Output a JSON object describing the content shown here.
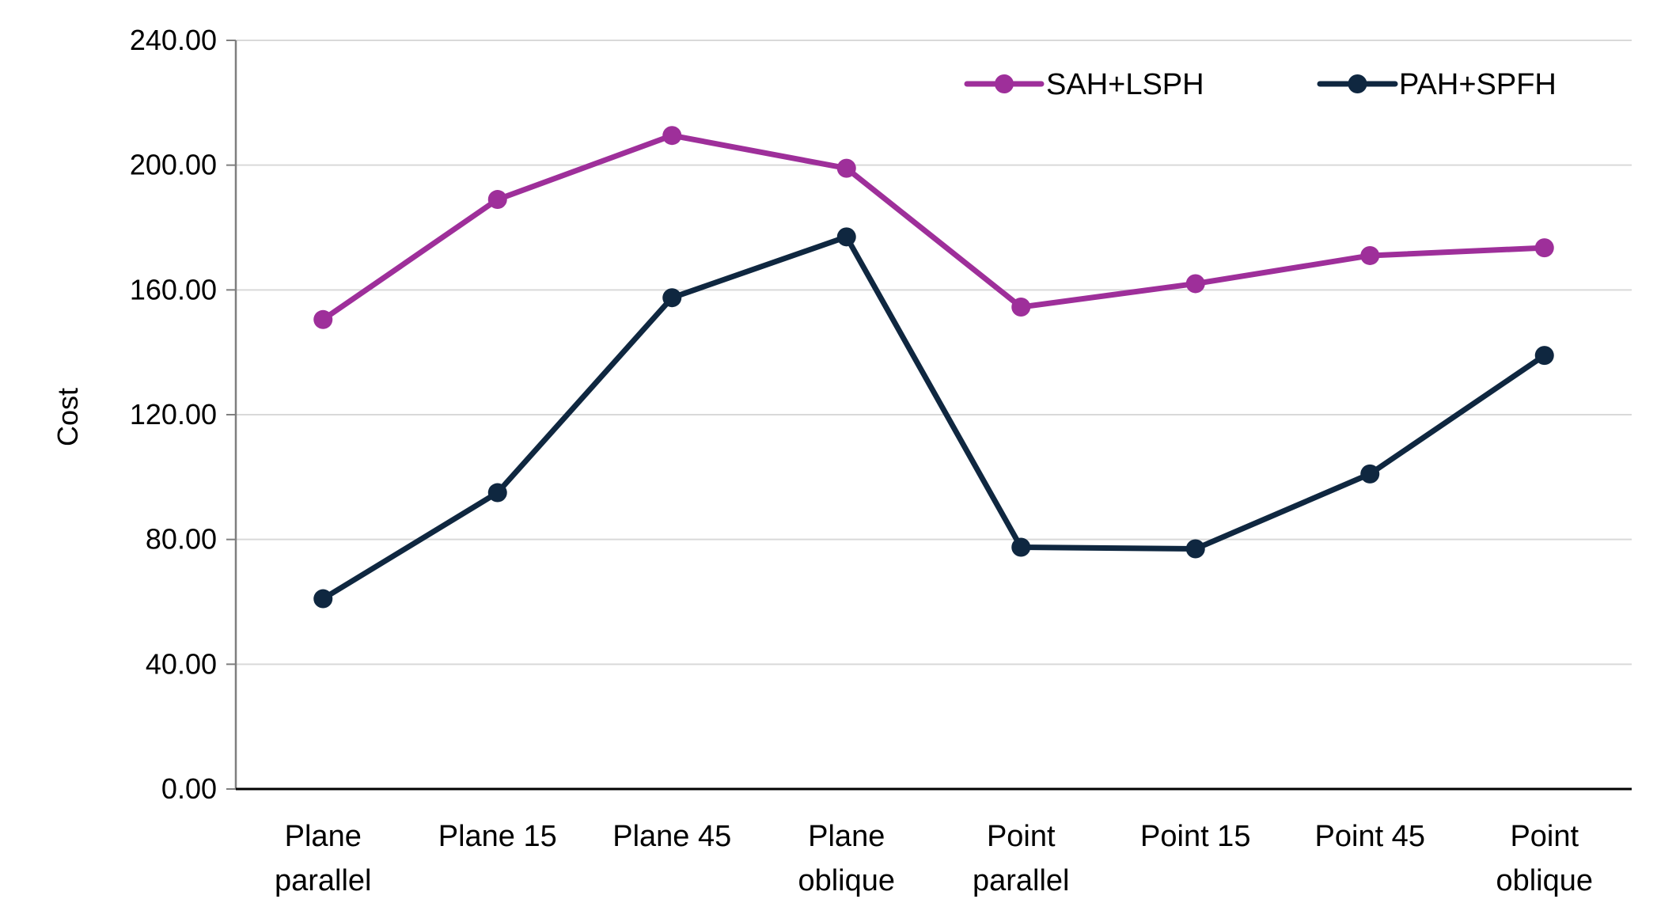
{
  "chart_data": {
    "type": "line",
    "title": "",
    "xlabel": "",
    "ylabel": "Cost",
    "ylim": [
      0,
      240
    ],
    "yticks": [
      "0.00",
      "40.00",
      "80.00",
      "120.00",
      "160.00",
      "200.00",
      "240.00"
    ],
    "categories": [
      [
        "Plane",
        "parallel"
      ],
      [
        "Plane 15"
      ],
      [
        "Plane 45"
      ],
      [
        "Plane",
        "oblique"
      ],
      [
        "Point",
        "parallel"
      ],
      [
        "Point 15"
      ],
      [
        "Point 45"
      ],
      [
        "Point",
        "oblique"
      ]
    ],
    "grid": true,
    "legend_position": "top-right",
    "series": [
      {
        "name": "SAH+LSPH",
        "color": "#9e2f9a",
        "values": [
          150.5,
          189.0,
          209.5,
          199.0,
          154.5,
          162.0,
          171.0,
          173.5
        ]
      },
      {
        "name": "PAH+SPFH",
        "color": "#0f2740",
        "values": [
          61.0,
          95.0,
          157.5,
          177.0,
          77.5,
          77.0,
          101.0,
          139.0
        ]
      }
    ]
  }
}
